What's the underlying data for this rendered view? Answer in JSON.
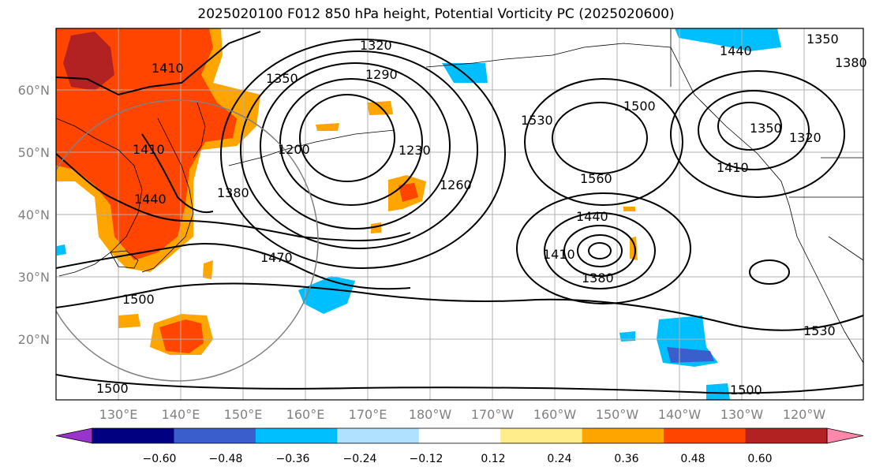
{
  "title": "2025020100 F012 850 hPa height, Potential Vorticity PC (2025020600)",
  "map": {
    "lat_labels": [
      "60°N",
      "50°N",
      "40°N",
      "30°N",
      "20°N"
    ],
    "lon_labels": [
      "130°E",
      "140°E",
      "150°E",
      "160°E",
      "170°E",
      "180°W",
      "170°W",
      "160°W",
      "150°W",
      "140°W",
      "130°W",
      "120°W"
    ],
    "contour_labels": [
      "1320",
      "1350",
      "1290",
      "1410",
      "1410",
      "1260",
      "1230",
      "1200",
      "1380",
      "1440",
      "1470",
      "1500",
      "1530",
      "1500",
      "1560",
      "1440",
      "1410",
      "1380",
      "1350",
      "1320",
      "1410",
      "1440",
      "1350",
      "1380",
      "1530",
      "1500",
      "1500"
    ]
  },
  "colorbar": {
    "ticks": [
      "−0.60",
      "−0.48",
      "−0.36",
      "−0.24",
      "−0.12",
      "0.12",
      "0.24",
      "0.36",
      "0.48",
      "0.60"
    ],
    "colors": [
      "#9933cc",
      "#000080",
      "#3a5fcd",
      "#00bfff",
      "#b0e2ff",
      "#ffffff",
      "#ffec8b",
      "#ffa500",
      "#ff4500",
      "#b22222",
      "#ff88aa"
    ]
  }
}
